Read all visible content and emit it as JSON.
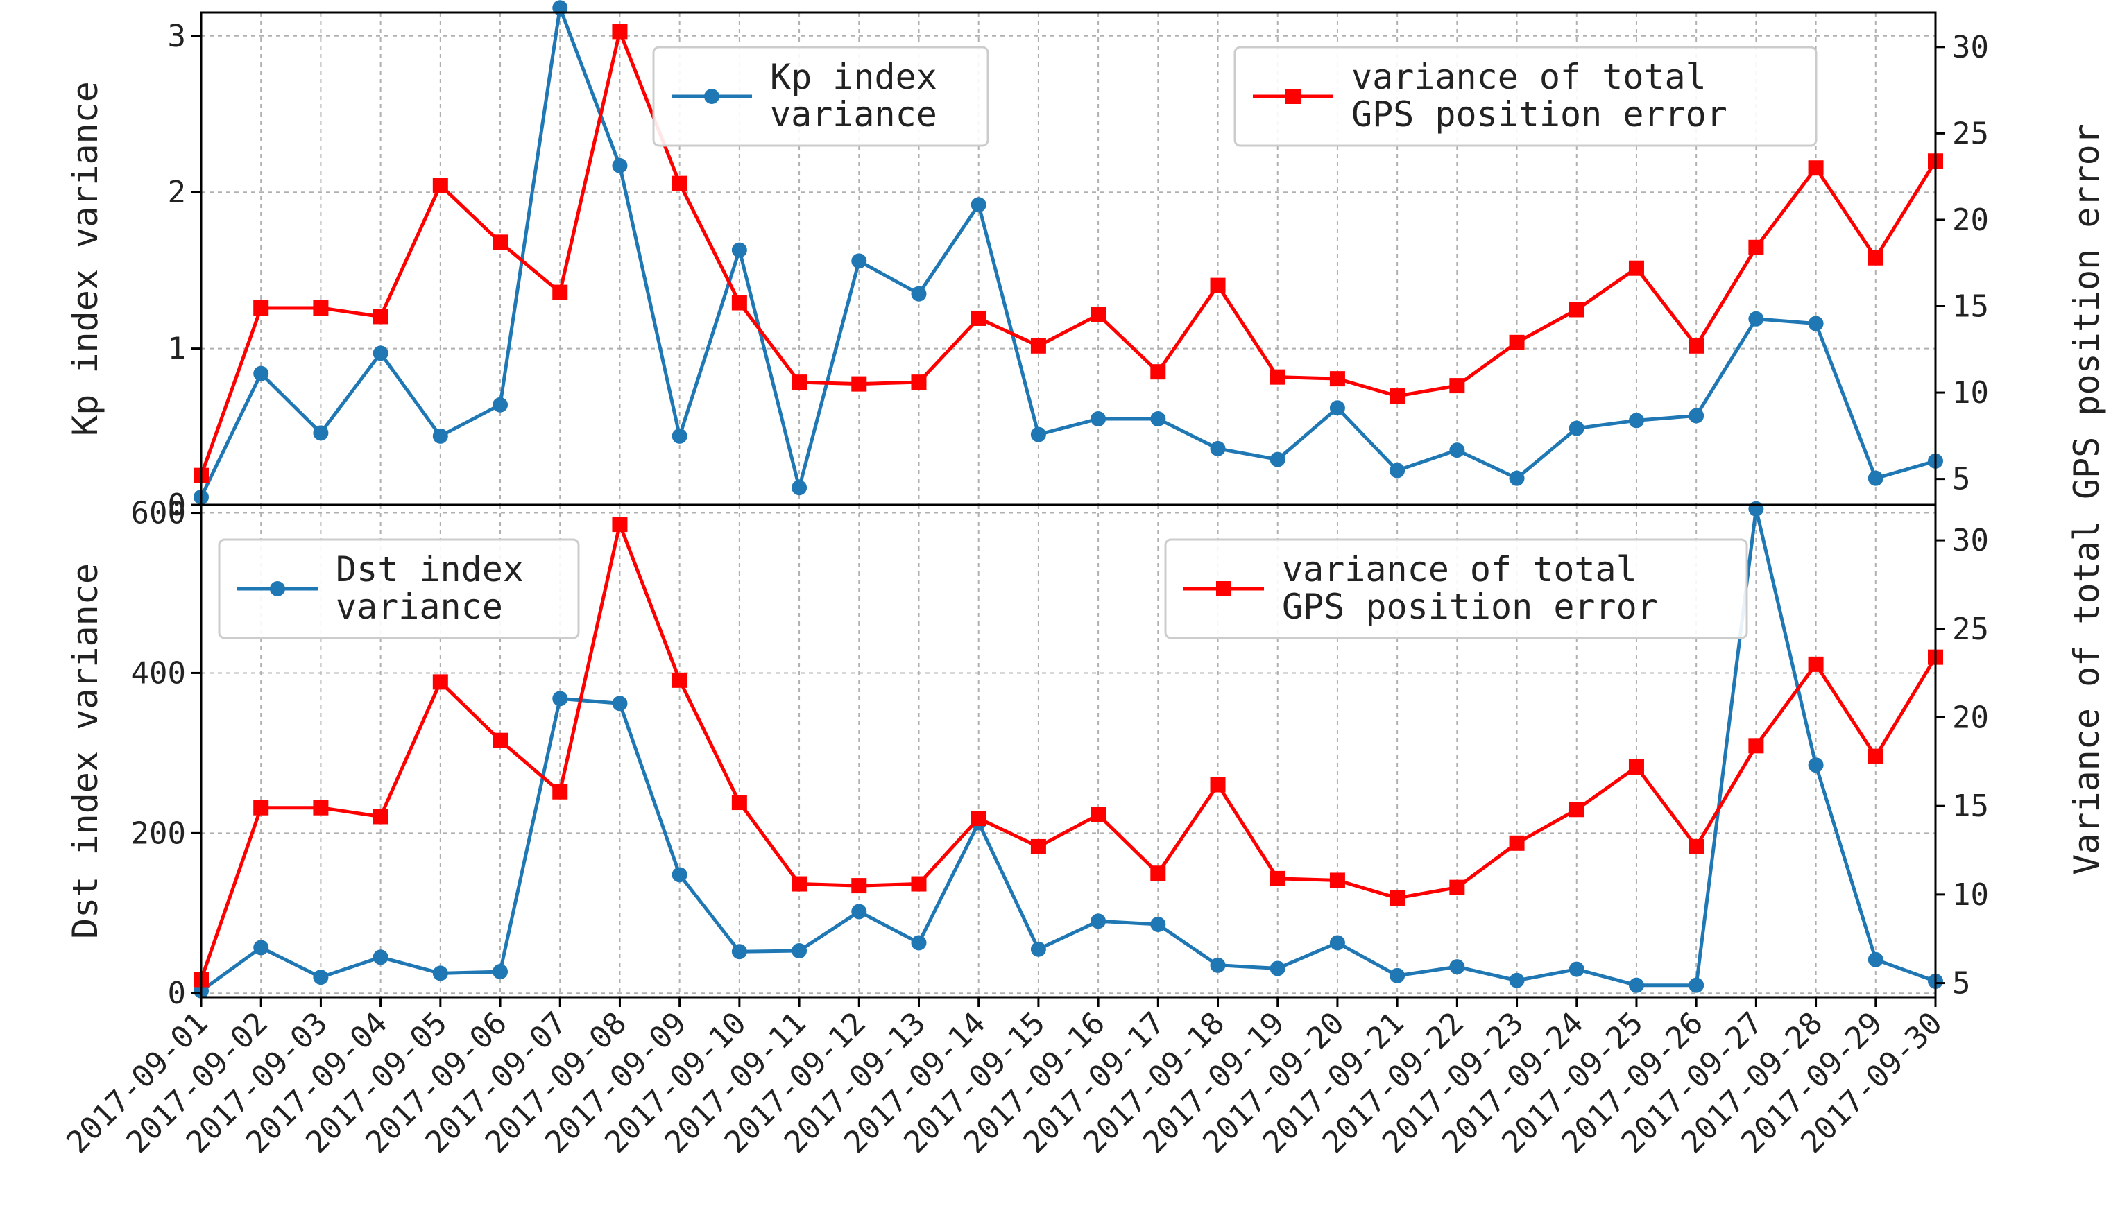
{
  "colors": {
    "kp_dst": "#1f77b4",
    "gps": "#ff0000",
    "grid": "#b0b0b0"
  },
  "x_dates": [
    "2017-09-01",
    "2017-09-02",
    "2017-09-03",
    "2017-09-04",
    "2017-09-05",
    "2017-09-06",
    "2017-09-07",
    "2017-09-08",
    "2017-09-09",
    "2017-09-10",
    "2017-09-11",
    "2017-09-12",
    "2017-09-13",
    "2017-09-14",
    "2017-09-15",
    "2017-09-16",
    "2017-09-17",
    "2017-09-18",
    "2017-09-19",
    "2017-09-20",
    "2017-09-21",
    "2017-09-22",
    "2017-09-23",
    "2017-09-24",
    "2017-09-25",
    "2017-09-26",
    "2017-09-27",
    "2017-09-28",
    "2017-09-29",
    "2017-09-30"
  ],
  "gps_error_variance": [
    5.2,
    14.9,
    14.9,
    14.4,
    22.0,
    18.7,
    15.8,
    30.9,
    22.1,
    15.2,
    10.6,
    10.5,
    10.6,
    14.3,
    12.7,
    14.5,
    11.2,
    16.2,
    10.9,
    10.8,
    9.8,
    10.4,
    12.9,
    14.8,
    17.2,
    12.7,
    18.4,
    23.0,
    17.8,
    23.4
  ],
  "chart_data": [
    {
      "type": "line",
      "ylabel": "Kp index variance",
      "y2label": "Variance of total GPS position error",
      "ylim": [
        0,
        3.15
      ],
      "y2lim": [
        3.5,
        32
      ],
      "yticks": [
        0,
        1,
        2,
        3
      ],
      "y2ticks": [
        5,
        10,
        15,
        20,
        25,
        30
      ],
      "grid": true,
      "series": [
        {
          "name": "Kp index\nvariance",
          "axis": "left",
          "color": "#1f77b4",
          "marker": "circle",
          "values": [
            0.05,
            0.84,
            0.46,
            0.97,
            0.44,
            0.64,
            3.18,
            2.17,
            0.44,
            1.63,
            0.11,
            1.56,
            1.35,
            1.92,
            0.45,
            0.55,
            0.55,
            0.36,
            0.29,
            0.62,
            0.22,
            0.35,
            0.17,
            0.49,
            0.54,
            0.57,
            1.19,
            1.16,
            0.17,
            0.28
          ]
        },
        {
          "name": "variance of total\nGPS position error",
          "axis": "right",
          "color": "#ff0000",
          "marker": "square",
          "values": [
            5.2,
            14.9,
            14.9,
            14.4,
            22.0,
            18.7,
            15.8,
            30.9,
            22.1,
            15.2,
            10.6,
            10.5,
            10.6,
            14.3,
            12.7,
            14.5,
            11.2,
            16.2,
            10.9,
            10.8,
            9.8,
            10.4,
            12.9,
            14.8,
            17.2,
            12.7,
            18.4,
            23.0,
            17.8,
            23.4
          ]
        }
      ]
    },
    {
      "type": "line",
      "ylabel": "Dst index variance",
      "y2label": "Variance of total GPS position error",
      "ylim": [
        -5,
        610
      ],
      "y2lim": [
        4.2,
        32
      ],
      "yticks": [
        0,
        200,
        400,
        600
      ],
      "y2ticks": [
        5,
        10,
        15,
        20,
        25,
        30
      ],
      "grid": true,
      "series": [
        {
          "name": "Dst index\nvariance",
          "axis": "left",
          "color": "#1f77b4",
          "marker": "circle",
          "values": [
            3,
            57,
            20,
            45,
            25,
            27,
            368,
            362,
            148,
            52,
            53,
            102,
            63,
            213,
            55,
            90,
            86,
            35,
            31,
            63,
            22,
            33,
            16,
            30,
            10,
            10,
            605,
            285,
            42,
            15
          ]
        },
        {
          "name": "variance of total\nGPS position error",
          "axis": "right",
          "color": "#ff0000",
          "marker": "square",
          "values": [
            5.2,
            14.9,
            14.9,
            14.4,
            22.0,
            18.7,
            15.8,
            30.9,
            22.1,
            15.2,
            10.6,
            10.5,
            10.6,
            14.3,
            12.7,
            14.5,
            11.2,
            16.2,
            10.9,
            10.8,
            9.8,
            10.4,
            12.9,
            14.8,
            17.2,
            12.7,
            18.4,
            23.0,
            17.8,
            23.4
          ]
        }
      ]
    }
  ]
}
